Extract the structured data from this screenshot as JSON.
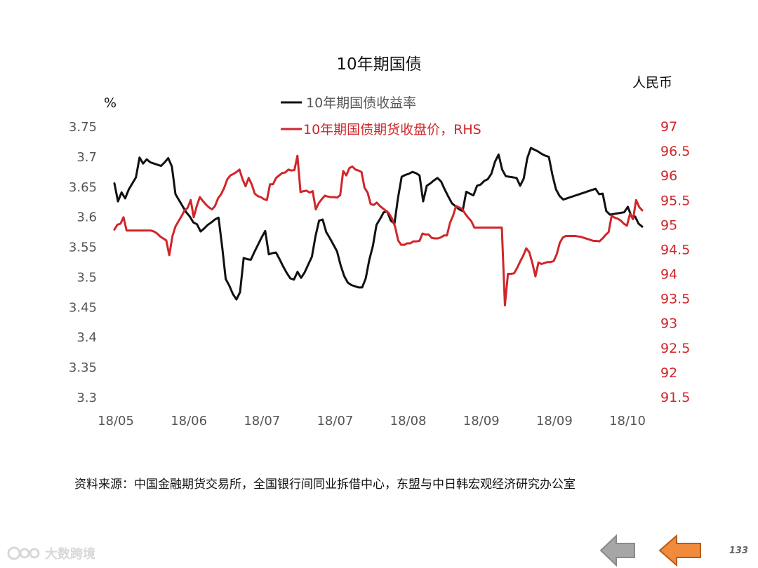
{
  "chart_data": {
    "type": "line",
    "title": "10年期国债",
    "left_unit": "%",
    "right_unit": "人民币",
    "left_ylim": [
      3.3,
      3.75
    ],
    "right_ylim": [
      91.5,
      97
    ],
    "left_ticks": [
      "3.75",
      "3.7",
      "3.65",
      "3.6",
      "3.55",
      "3.5",
      "3.45",
      "3.4",
      "3.35",
      "3.3"
    ],
    "right_ticks": [
      "97",
      "96.5",
      "96",
      "95.5",
      "95",
      "94.5",
      "94",
      "93.5",
      "93",
      "92.5",
      "92",
      "91.5"
    ],
    "x_tick_labels": [
      "18/05",
      "18/06",
      "18/07",
      "18/07",
      "18/08",
      "18/09",
      "18/09",
      "18/10"
    ],
    "grid": false,
    "legend_position": "top-center",
    "series": [
      {
        "name": "10年期国债收益率",
        "axis": "left",
        "color": "#111111",
        "values": [
          3.655,
          3.625,
          3.64,
          3.63,
          3.645,
          3.655,
          3.665,
          3.698,
          3.688,
          3.695,
          3.69,
          3.688,
          3.686,
          3.684,
          3.69,
          3.697,
          3.683,
          3.637,
          3.627,
          3.617,
          3.607,
          3.6,
          3.59,
          3.587,
          3.575,
          3.58,
          3.586,
          3.59,
          3.595,
          3.598,
          3.55,
          3.496,
          3.485,
          3.471,
          3.462,
          3.474,
          3.531,
          3.529,
          3.528,
          3.541,
          3.553,
          3.565,
          3.576,
          3.537,
          3.539,
          3.54,
          3.529,
          3.517,
          3.506,
          3.497,
          3.495,
          3.508,
          3.498,
          3.507,
          3.52,
          3.533,
          3.567,
          3.593,
          3.595,
          3.574,
          3.564,
          3.553,
          3.542,
          3.519,
          3.501,
          3.49,
          3.486,
          3.484,
          3.482,
          3.482,
          3.497,
          3.528,
          3.551,
          3.586,
          3.596,
          3.607,
          3.608,
          3.593,
          3.588,
          3.631,
          3.666,
          3.669,
          3.671,
          3.674,
          3.672,
          3.668,
          3.625,
          3.651,
          3.655,
          3.66,
          3.664,
          3.658,
          3.645,
          3.633,
          3.622,
          3.617,
          3.612,
          3.609,
          3.641,
          3.638,
          3.635,
          3.651,
          3.653,
          3.659,
          3.662,
          3.671,
          3.691,
          3.703,
          3.678,
          3.667,
          3.666,
          3.665,
          3.664,
          3.651,
          3.663,
          3.697,
          3.714,
          3.711,
          3.708,
          3.704,
          3.701,
          3.699,
          3.669,
          3.645,
          3.634,
          3.628,
          3.63,
          3.632,
          3.634,
          3.636,
          3.638,
          3.64,
          3.642,
          3.644,
          3.646,
          3.637,
          3.638,
          3.609,
          3.603,
          3.604,
          3.605,
          3.606,
          3.607,
          3.616,
          3.6,
          3.6,
          3.588,
          3.583
        ]
      },
      {
        "name": "10年期国债期货收盘价，RHS",
        "axis": "right",
        "color": "#d0262a",
        "values": [
          94.9,
          95.0,
          95.02,
          95.15,
          94.88,
          94.88,
          94.88,
          94.88,
          94.88,
          94.88,
          94.88,
          94.88,
          94.88,
          94.86,
          94.82,
          94.76,
          94.72,
          94.68,
          94.38,
          94.76,
          94.96,
          95.07,
          95.17,
          95.29,
          95.34,
          95.5,
          95.15,
          95.38,
          95.56,
          95.48,
          95.41,
          95.35,
          95.31,
          95.38,
          95.54,
          95.62,
          95.75,
          95.92,
          96.0,
          96.03,
          96.07,
          96.12,
          95.92,
          95.78,
          95.95,
          95.82,
          95.63,
          95.58,
          95.56,
          95.52,
          95.5,
          95.82,
          95.82,
          95.95,
          96.0,
          96.05,
          96.06,
          96.12,
          96.1,
          96.11,
          96.4,
          95.66,
          95.68,
          95.69,
          95.65,
          95.68,
          95.31,
          95.44,
          95.52,
          95.59,
          95.57,
          95.56,
          95.56,
          95.55,
          95.6,
          96.09,
          96.0,
          96.15,
          96.18,
          96.12,
          96.1,
          96.07,
          95.75,
          95.65,
          95.42,
          95.4,
          95.45,
          95.38,
          95.33,
          95.28,
          95.23,
          95.12,
          94.96,
          94.68,
          94.59,
          94.59,
          94.62,
          94.62,
          94.66,
          94.66,
          94.67,
          94.82,
          94.8,
          94.8,
          94.73,
          94.72,
          94.72,
          94.74,
          94.78,
          94.78,
          95.04,
          95.18,
          95.38,
          95.35,
          95.32,
          95.22,
          95.14,
          95.07,
          94.94,
          94.94,
          94.94,
          94.94,
          94.94,
          94.94,
          94.94,
          94.94,
          94.94,
          94.94,
          93.36,
          94.0,
          94.0,
          94.01,
          94.12,
          94.25,
          94.37,
          94.52,
          94.44,
          94.22,
          93.95,
          94.23,
          94.2,
          94.22,
          94.24,
          94.24,
          94.26,
          94.4,
          94.63,
          94.74,
          94.77,
          94.77,
          94.77,
          94.77,
          94.76,
          94.75,
          94.73,
          94.71,
          94.69,
          94.67,
          94.67,
          94.66,
          94.72,
          94.79,
          94.85,
          95.18,
          95.14,
          95.12,
          95.08,
          95.02,
          94.98,
          95.22,
          95.11,
          95.5,
          95.36,
          95.29
        ]
      }
    ]
  },
  "source_note": "资料来源：中国金融期货交易所，全国银行间同业拆借中心，东盟与中日韩宏观经济研究办公室",
  "watermark": "大数跨境",
  "page_number": "133",
  "nav": {
    "back_color": "#a6a6a6",
    "prev_color": "#f08a3c"
  }
}
